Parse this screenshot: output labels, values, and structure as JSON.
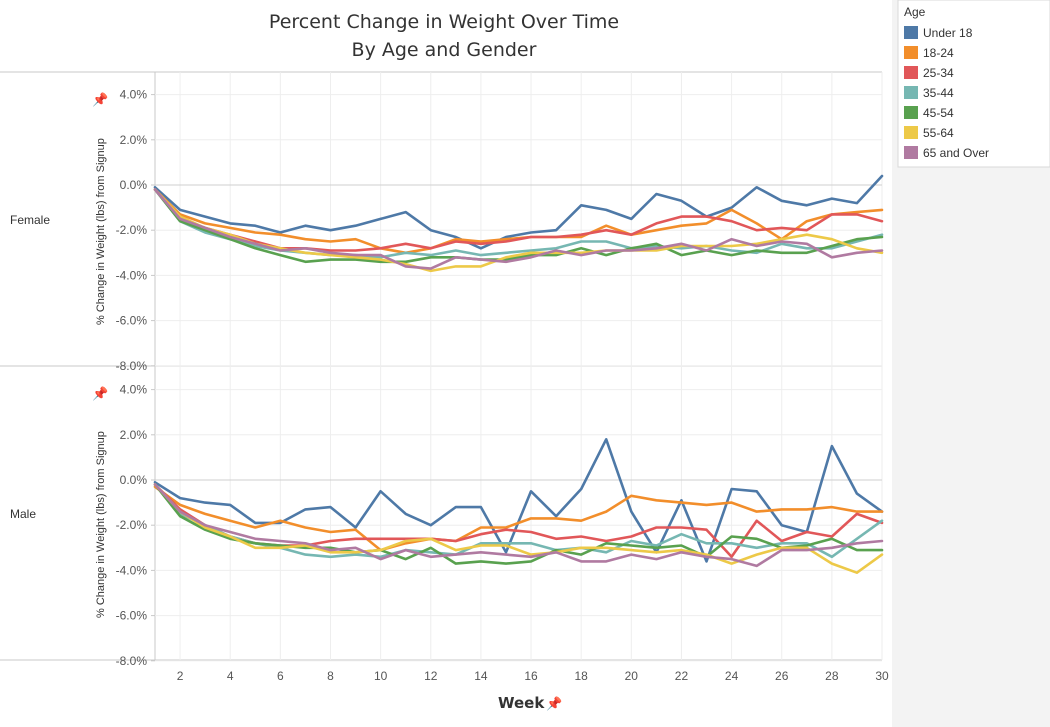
{
  "chart_data": {
    "type": "line",
    "title": "Percent Change in Weight Over Time",
    "subtitle": "By Age and Gender",
    "xlabel": "Week",
    "ylabel": "% Change in Weight (lbs) from Signup",
    "x": [
      1,
      2,
      3,
      4,
      5,
      6,
      7,
      8,
      9,
      10,
      11,
      12,
      13,
      14,
      15,
      16,
      17,
      18,
      19,
      20,
      21,
      22,
      23,
      24,
      25,
      26,
      27,
      28,
      29,
      30
    ],
    "x_ticks": [
      2,
      4,
      6,
      8,
      10,
      12,
      14,
      16,
      18,
      20,
      22,
      24,
      26,
      28,
      30
    ],
    "x_tick_labels": [
      "2",
      "4",
      "6",
      "8",
      "10",
      "12",
      "14",
      "16",
      "18",
      "20",
      "22",
      "24",
      "26",
      "28",
      "30"
    ],
    "ylim": [
      -8.3,
      4.6
    ],
    "y_ticks": [
      4,
      2,
      0,
      -2,
      -4,
      -6,
      -8
    ],
    "y_tick_labels": [
      "4.0%",
      "2.0%",
      "0.0%",
      "-2.0%",
      "-4.0%",
      "-6.0%",
      "-8.0%"
    ],
    "grid": true,
    "legend": {
      "title": "Age",
      "placement": "right",
      "entries": [
        "Under 18",
        "18-24",
        "25-34",
        "35-44",
        "45-54",
        "55-64",
        "65 and Over"
      ]
    },
    "colors": [
      "#4e79a7",
      "#f28e2b",
      "#e15759",
      "#76b7b2",
      "#59a14f",
      "#edc948",
      "#b07aa1"
    ],
    "panels": [
      {
        "label": "Female",
        "series": [
          {
            "name": "Under 18",
            "values": [
              -0.1,
              -1.1,
              -1.4,
              -1.7,
              -1.8,
              -2.1,
              -1.8,
              -2.0,
              -1.8,
              -1.5,
              -1.2,
              -2.0,
              -2.3,
              -2.8,
              -2.3,
              -2.1,
              -2.0,
              -0.9,
              -1.1,
              -1.5,
              -0.4,
              -0.7,
              -1.4,
              -1.0,
              -0.1,
              -0.7,
              -0.9,
              -0.6,
              -0.8,
              0.4
            ]
          },
          {
            "name": "18-24",
            "values": [
              -0.2,
              -1.3,
              -1.7,
              -1.9,
              -2.1,
              -2.2,
              -2.4,
              -2.5,
              -2.4,
              -2.8,
              -3.0,
              -2.8,
              -2.4,
              -2.5,
              -2.4,
              -2.3,
              -2.3,
              -2.3,
              -1.8,
              -2.2,
              -2.0,
              -1.8,
              -1.7,
              -1.1,
              -1.7,
              -2.4,
              -1.6,
              -1.3,
              -1.2,
              -1.1
            ]
          },
          {
            "name": "25-34",
            "values": [
              -0.2,
              -1.5,
              -1.9,
              -2.2,
              -2.5,
              -2.8,
              -2.8,
              -2.9,
              -2.9,
              -2.8,
              -2.6,
              -2.8,
              -2.5,
              -2.6,
              -2.5,
              -2.3,
              -2.3,
              -2.2,
              -2.0,
              -2.2,
              -1.7,
              -1.4,
              -1.4,
              -1.6,
              -2.0,
              -1.9,
              -2.0,
              -1.3,
              -1.3,
              -1.6
            ]
          },
          {
            "name": "35-44",
            "values": [
              -0.2,
              -1.6,
              -2.1,
              -2.4,
              -2.7,
              -2.9,
              -3.0,
              -3.1,
              -3.1,
              -3.2,
              -3.0,
              -3.1,
              -2.9,
              -3.1,
              -3.0,
              -2.9,
              -2.8,
              -2.5,
              -2.5,
              -2.8,
              -2.7,
              -2.8,
              -2.7,
              -2.9,
              -3.0,
              -2.6,
              -2.8,
              -2.8,
              -2.5,
              -2.2
            ]
          },
          {
            "name": "45-54",
            "values": [
              -0.2,
              -1.6,
              -2.0,
              -2.4,
              -2.8,
              -3.1,
              -3.4,
              -3.3,
              -3.3,
              -3.4,
              -3.4,
              -3.2,
              -3.2,
              -3.3,
              -3.3,
              -3.1,
              -3.1,
              -2.8,
              -3.1,
              -2.8,
              -2.6,
              -3.1,
              -2.9,
              -3.1,
              -2.9,
              -3.0,
              -3.0,
              -2.7,
              -2.4,
              -2.3
            ]
          },
          {
            "name": "55-64",
            "values": [
              -0.2,
              -1.4,
              -1.9,
              -2.2,
              -2.6,
              -2.8,
              -3.0,
              -3.1,
              -3.2,
              -3.3,
              -3.5,
              -3.8,
              -3.6,
              -3.6,
              -3.2,
              -3.0,
              -3.0,
              -3.0,
              -2.9,
              -2.9,
              -2.9,
              -2.7,
              -2.7,
              -2.7,
              -2.6,
              -2.4,
              -2.2,
              -2.4,
              -2.8,
              -3.0
            ]
          },
          {
            "name": "65 and Over",
            "values": [
              -0.2,
              -1.5,
              -1.9,
              -2.3,
              -2.6,
              -2.9,
              -2.8,
              -3.0,
              -3.1,
              -3.1,
              -3.6,
              -3.7,
              -3.2,
              -3.3,
              -3.4,
              -3.2,
              -2.9,
              -3.1,
              -2.9,
              -2.9,
              -2.8,
              -2.6,
              -2.9,
              -2.4,
              -2.7,
              -2.5,
              -2.6,
              -3.2,
              -3.0,
              -2.9
            ]
          }
        ]
      },
      {
        "label": "Male",
        "series": [
          {
            "name": "Under 18",
            "values": [
              -0.1,
              -0.8,
              -1.0,
              -1.1,
              -1.9,
              -1.9,
              -1.3,
              -1.2,
              -2.1,
              -0.5,
              -1.5,
              -2.0,
              -1.2,
              -1.2,
              -3.2,
              -0.5,
              -1.6,
              -0.4,
              1.8,
              -1.4,
              -3.2,
              -0.9,
              -3.6,
              -0.4,
              -0.5,
              -2.0,
              -2.3,
              1.5,
              -0.6,
              -1.4
            ]
          },
          {
            "name": "18-24",
            "values": [
              -0.3,
              -1.1,
              -1.5,
              -1.8,
              -2.1,
              -1.8,
              -2.1,
              -2.3,
              -2.2,
              -3.1,
              -2.8,
              -2.6,
              -2.7,
              -2.1,
              -2.1,
              -1.7,
              -1.7,
              -1.8,
              -1.4,
              -0.7,
              -0.9,
              -1.0,
              -1.1,
              -1.0,
              -1.4,
              -1.3,
              -1.3,
              -1.2,
              -1.4,
              -1.4
            ]
          },
          {
            "name": "25-34",
            "values": [
              -0.2,
              -1.3,
              -2.0,
              -2.5,
              -2.8,
              -2.9,
              -2.9,
              -2.7,
              -2.6,
              -2.6,
              -2.6,
              -2.6,
              -2.7,
              -2.4,
              -2.2,
              -2.3,
              -2.6,
              -2.5,
              -2.7,
              -2.5,
              -2.1,
              -2.1,
              -2.2,
              -3.4,
              -1.8,
              -2.7,
              -2.3,
              -2.5,
              -1.5,
              -1.9
            ]
          },
          {
            "name": "35-44",
            "values": [
              -0.2,
              -1.5,
              -2.0,
              -2.5,
              -2.8,
              -3.0,
              -3.3,
              -3.4,
              -3.3,
              -3.4,
              -3.1,
              -3.2,
              -3.3,
              -2.8,
              -2.8,
              -2.8,
              -3.1,
              -3.0,
              -3.2,
              -2.7,
              -2.9,
              -2.4,
              -2.8,
              -2.8,
              -3.0,
              -2.8,
              -2.8,
              -3.4,
              -2.6,
              -1.8
            ]
          },
          {
            "name": "45-54",
            "values": [
              -0.2,
              -1.6,
              -2.2,
              -2.6,
              -2.8,
              -2.9,
              -3.0,
              -3.0,
              -3.2,
              -3.1,
              -3.5,
              -3.0,
              -3.7,
              -3.6,
              -3.7,
              -3.6,
              -3.1,
              -3.3,
              -2.8,
              -2.9,
              -3.0,
              -2.9,
              -3.4,
              -2.5,
              -2.6,
              -3.0,
              -2.9,
              -2.6,
              -3.1,
              -3.1
            ]
          },
          {
            "name": "55-64",
            "values": [
              -0.2,
              -1.4,
              -2.1,
              -2.5,
              -3.0,
              -3.0,
              -2.9,
              -3.2,
              -3.2,
              -3.1,
              -2.7,
              -2.6,
              -3.1,
              -2.9,
              -2.9,
              -3.3,
              -3.2,
              -3.0,
              -3.0,
              -3.1,
              -3.2,
              -3.1,
              -3.3,
              -3.7,
              -3.3,
              -3.0,
              -3.0,
              -3.7,
              -4.1,
              -3.3
            ]
          },
          {
            "name": "65 and Over",
            "values": [
              -0.2,
              -1.4,
              -2.0,
              -2.3,
              -2.6,
              -2.7,
              -2.8,
              -3.1,
              -3.0,
              -3.5,
              -3.1,
              -3.4,
              -3.3,
              -3.2,
              -3.3,
              -3.4,
              -3.2,
              -3.6,
              -3.6,
              -3.3,
              -3.5,
              -3.2,
              -3.4,
              -3.5,
              -3.8,
              -3.1,
              -3.1,
              -3.0,
              -2.8,
              -2.7
            ]
          }
        ]
      }
    ]
  }
}
